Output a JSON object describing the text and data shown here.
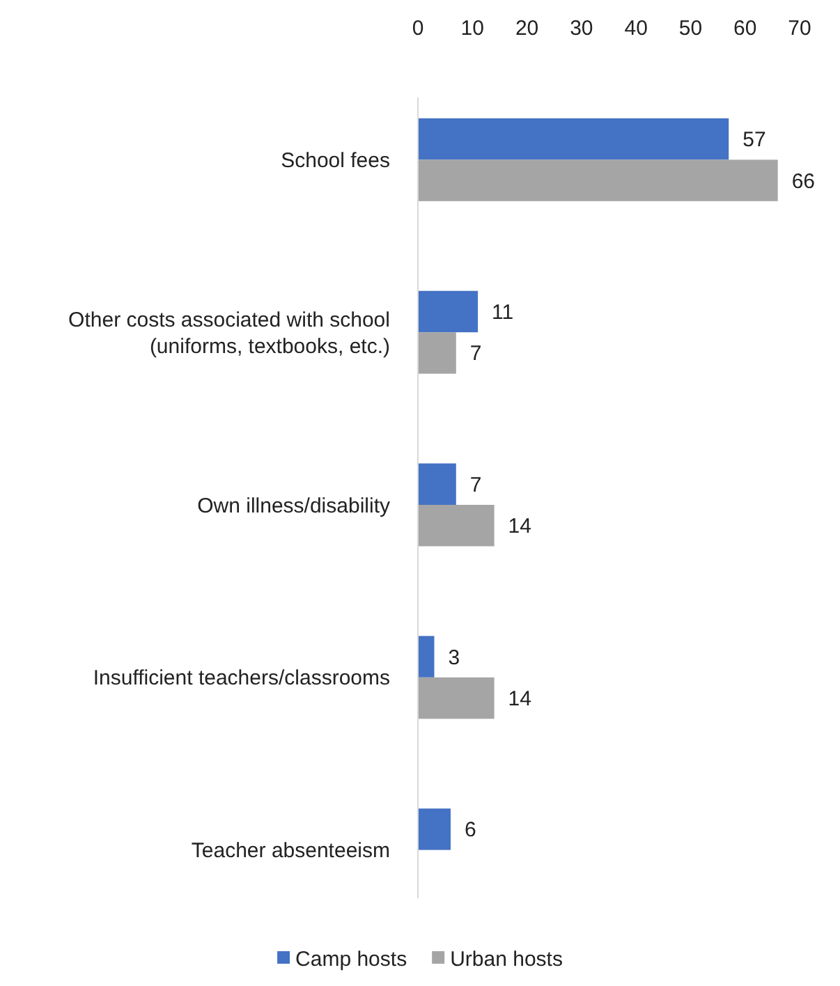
{
  "chart_data": {
    "type": "bar",
    "orientation": "horizontal",
    "categories": [
      "School fees",
      "Other costs associated with school (uniforms, textbooks, etc.)",
      "Own illness/disability",
      "Insufficient teachers/classrooms",
      "Teacher absenteeism"
    ],
    "series": [
      {
        "name": "Camp hosts",
        "color": "#4472c4",
        "values": [
          57,
          11,
          7,
          3,
          6
        ]
      },
      {
        "name": "Urban hosts",
        "color": "#a5a5a5",
        "values": [
          66,
          7,
          14,
          14,
          null
        ]
      }
    ],
    "xlim": [
      0,
      70
    ],
    "xticks": [
      0,
      10,
      20,
      30,
      40,
      50,
      60,
      70
    ],
    "data_labels": true,
    "legend": "bottom",
    "grid": false
  }
}
